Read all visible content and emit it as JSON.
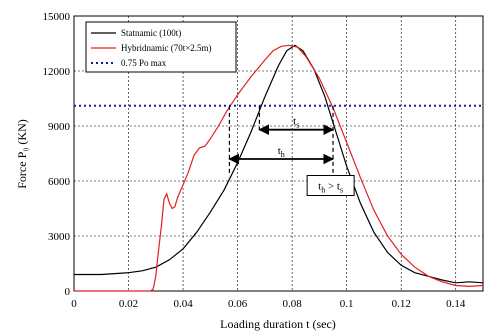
{
  "chart_data": {
    "type": "line",
    "title": "",
    "xlabel": "Loading duration  t (sec)",
    "ylabel": "Force P₀ (KN)",
    "xlim": [
      0,
      0.15
    ],
    "ylim": [
      0,
      15000
    ],
    "x_ticks": [
      0,
      0.02,
      0.04,
      0.06,
      0.08,
      0.1,
      0.12,
      0.14
    ],
    "x_tick_labels": [
      "0",
      "0.02",
      "0.04",
      "0.06",
      "0.08",
      "0.1",
      "0.12",
      "0.14"
    ],
    "y_ticks": [
      0,
      3000,
      6000,
      9000,
      12000,
      15000
    ],
    "y_tick_labels": [
      "0",
      "3000",
      "6000",
      "9000",
      "12000",
      "15000"
    ],
    "grid": true,
    "legend_position": "top-left",
    "series": [
      {
        "name": "Statnamic (100t)",
        "color": "#000000",
        "style": "solid",
        "points": [
          [
            0,
            900
          ],
          [
            0.01,
            900
          ],
          [
            0.02,
            1000
          ],
          [
            0.025,
            1100
          ],
          [
            0.03,
            1300
          ],
          [
            0.035,
            1700
          ],
          [
            0.04,
            2300
          ],
          [
            0.045,
            3200
          ],
          [
            0.05,
            4300
          ],
          [
            0.055,
            5500
          ],
          [
            0.06,
            7000
          ],
          [
            0.065,
            8700
          ],
          [
            0.07,
            10600
          ],
          [
            0.075,
            12300
          ],
          [
            0.078,
            13100
          ],
          [
            0.081,
            13400
          ],
          [
            0.084,
            13100
          ],
          [
            0.088,
            12100
          ],
          [
            0.092,
            10600
          ],
          [
            0.096,
            8700
          ],
          [
            0.1,
            6800
          ],
          [
            0.105,
            4800
          ],
          [
            0.11,
            3200
          ],
          [
            0.115,
            2100
          ],
          [
            0.12,
            1400
          ],
          [
            0.125,
            1000
          ],
          [
            0.13,
            800
          ],
          [
            0.135,
            600
          ],
          [
            0.14,
            450
          ],
          [
            0.145,
            500
          ],
          [
            0.15,
            450
          ]
        ]
      },
      {
        "name": "Hybridnamic (70t×2.5m)",
        "color": "#e02020",
        "style": "solid",
        "points": [
          [
            0,
            0
          ],
          [
            0.02,
            0
          ],
          [
            0.028,
            0
          ],
          [
            0.029,
            100
          ],
          [
            0.03,
            800
          ],
          [
            0.031,
            2200
          ],
          [
            0.032,
            3500
          ],
          [
            0.033,
            5000
          ],
          [
            0.034,
            5300
          ],
          [
            0.035,
            4800
          ],
          [
            0.036,
            4500
          ],
          [
            0.037,
            4600
          ],
          [
            0.038,
            5100
          ],
          [
            0.04,
            5800
          ],
          [
            0.042,
            6500
          ],
          [
            0.044,
            7400
          ],
          [
            0.046,
            7800
          ],
          [
            0.048,
            7900
          ],
          [
            0.05,
            8300
          ],
          [
            0.053,
            9000
          ],
          [
            0.056,
            9800
          ],
          [
            0.06,
            10700
          ],
          [
            0.065,
            11700
          ],
          [
            0.07,
            12600
          ],
          [
            0.073,
            13100
          ],
          [
            0.076,
            13350
          ],
          [
            0.079,
            13400
          ],
          [
            0.082,
            13300
          ],
          [
            0.085,
            12800
          ],
          [
            0.09,
            11600
          ],
          [
            0.095,
            10000
          ],
          [
            0.1,
            8100
          ],
          [
            0.105,
            6200
          ],
          [
            0.11,
            4400
          ],
          [
            0.115,
            3000
          ],
          [
            0.12,
            2000
          ],
          [
            0.125,
            1300
          ],
          [
            0.13,
            800
          ],
          [
            0.135,
            500
          ],
          [
            0.14,
            300
          ],
          [
            0.145,
            250
          ],
          [
            0.15,
            300
          ]
        ]
      },
      {
        "name": "0.75 Po max",
        "color": "#1a1aa0",
        "style": "dotted",
        "points": [
          [
            0,
            10100
          ],
          [
            0.15,
            10100
          ]
        ]
      }
    ],
    "annotations": [
      {
        "label": "t",
        "subscript": "s",
        "from_x": 0.068,
        "to_x": 0.095,
        "y": 8800
      },
      {
        "label": "t",
        "subscript": "h",
        "from_x": 0.057,
        "to_x": 0.095,
        "y": 7200
      },
      {
        "label": "t",
        "subscript": "h",
        "relation": ">",
        "label2": "t",
        "subscript2": "s"
      }
    ]
  }
}
